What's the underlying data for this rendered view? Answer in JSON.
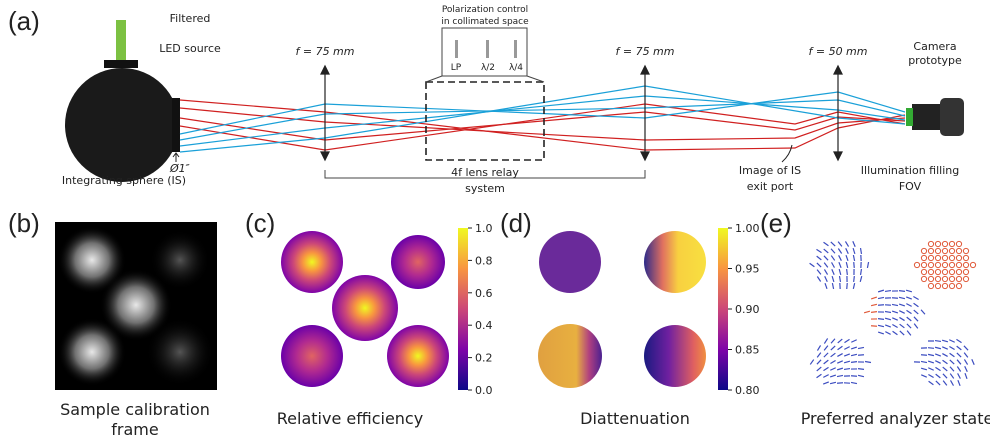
{
  "panel_a": {
    "label": "(a)",
    "led_source": [
      "Filtered",
      "LED source"
    ],
    "sphere": "Integrating sphere (IS)",
    "port": "Ø1″",
    "lens_1": "f = 75 mm",
    "lens_2": "f = 75 mm",
    "lens_3": "f = 50 mm",
    "polarization": [
      "Polarization control",
      "in collimated space"
    ],
    "elements": [
      "LP",
      "λ/2",
      "λ/4"
    ],
    "relay": [
      "4f lens relay",
      "system"
    ],
    "image": [
      "Image of IS",
      "exit port"
    ],
    "camera": [
      "Camera",
      "prototype"
    ],
    "illumination": [
      "Illumination filling",
      "FOV"
    ]
  },
  "panel_b": {
    "label": "(b)",
    "caption": [
      "Sample calibration",
      "frame"
    ]
  },
  "panel_c": {
    "label": "(c)",
    "caption": "Relative efficiency",
    "colorbar": {
      "lim": [
        0,
        1
      ],
      "ticks": [
        {
          "value": 0,
          "label": "0.0"
        },
        0.2,
        0.4,
        0.6,
        0.8,
        {
          "value": 1,
          "label": "1.0"
        }
      ]
    }
  },
  "panel_d": {
    "label": "(d)",
    "caption": "Diattenuation",
    "colorbar": {
      "lim": [
        0.8,
        1.0
      ],
      "ticks": [
        {
          "value": 0.8,
          "label": "0.80"
        },
        {
          "value": 0.85,
          "label": "0.85"
        },
        {
          "value": 0.9,
          "label": "0.90"
        },
        {
          "value": 0.95,
          "label": "0.95"
        },
        {
          "value": 1.0,
          "label": "1.00"
        }
      ]
    }
  },
  "panel_e": {
    "label": "(e)",
    "caption": "Preferred analyzer state"
  }
}
